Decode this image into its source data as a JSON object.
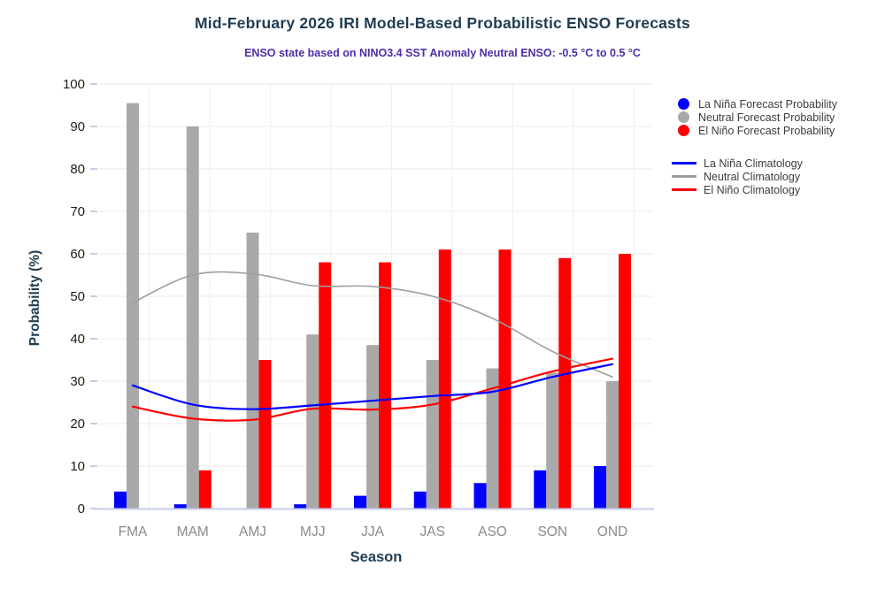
{
  "title": "Mid-February 2026 IRI Model-Based Probabilistic ENSO Forecasts",
  "subtitle": "ENSO state based on NINO3.4 SST Anomaly Neutral ENSO: -0.5 °C to 0.5 °C",
  "colors": {
    "la_nina": "#0000fe",
    "neutral_bar": "#a9a9a9",
    "el_nino": "#fe0000",
    "neutral_line": "#9e9e9e",
    "title_text": "#1f3d52",
    "subtitle_text": "#4b2fa8",
    "x_tick_text": "#8b8b8b",
    "y_tick_text": "#1b1b1b",
    "gridline": "#e8e8e8",
    "baseline": "#c5cde7"
  },
  "legend": {
    "forecast": [
      {
        "label": "La Niña Forecast Probability",
        "color": "#0000fe"
      },
      {
        "label": "Neutral Forecast Probability",
        "color": "#a9a9a9"
      },
      {
        "label": "El Niño Forecast Probability",
        "color": "#fe0000"
      }
    ],
    "climatology": [
      {
        "label": "La Niña Climatology",
        "color": "#0000fe"
      },
      {
        "label": "Neutral Climatology",
        "color": "#9e9e9e"
      },
      {
        "label": "El Niño Climatology",
        "color": "#fe0000"
      }
    ]
  },
  "chart_data": {
    "type": "bar",
    "categories": [
      "FMA",
      "MAM",
      "AMJ",
      "MJJ",
      "JJA",
      "JAS",
      "ASO",
      "SON",
      "OND"
    ],
    "series": [
      {
        "name": "La Niña Forecast Probability",
        "type": "bar",
        "color": "#0000fe",
        "values": [
          4,
          1,
          0,
          1,
          3,
          4,
          6,
          9,
          10
        ]
      },
      {
        "name": "Neutral Forecast Probability",
        "type": "bar",
        "color": "#a9a9a9",
        "values": [
          95.5,
          90,
          65,
          41,
          38.5,
          35,
          33,
          32,
          30
        ]
      },
      {
        "name": "El Niño Forecast Probability",
        "type": "bar",
        "color": "#fe0000",
        "values": [
          0,
          9,
          35,
          58,
          58,
          61,
          61,
          59,
          60
        ]
      },
      {
        "name": "La Niña Climatology",
        "type": "line",
        "color": "#0000fe",
        "values": [
          29,
          24.5,
          23.4,
          24.3,
          25.4,
          26.5,
          27.5,
          31,
          34
        ]
      },
      {
        "name": "Neutral Climatology",
        "type": "line",
        "color": "#9e9e9e",
        "values": [
          48.5,
          55,
          55.3,
          52.5,
          52.3,
          50,
          44.8,
          37,
          31
        ]
      },
      {
        "name": "El Niño Climatology",
        "type": "line",
        "color": "#fe0000",
        "values": [
          24,
          21.2,
          20.9,
          23.5,
          23.3,
          24.5,
          28.3,
          32.3,
          35.3
        ]
      }
    ],
    "xlabel": "Season",
    "ylabel": "Probability (%)",
    "ylim": [
      0,
      100
    ],
    "yticks": [
      0,
      10,
      20,
      30,
      40,
      50,
      60,
      70,
      80,
      90,
      100
    ],
    "grid": true,
    "legend_position": "right"
  }
}
